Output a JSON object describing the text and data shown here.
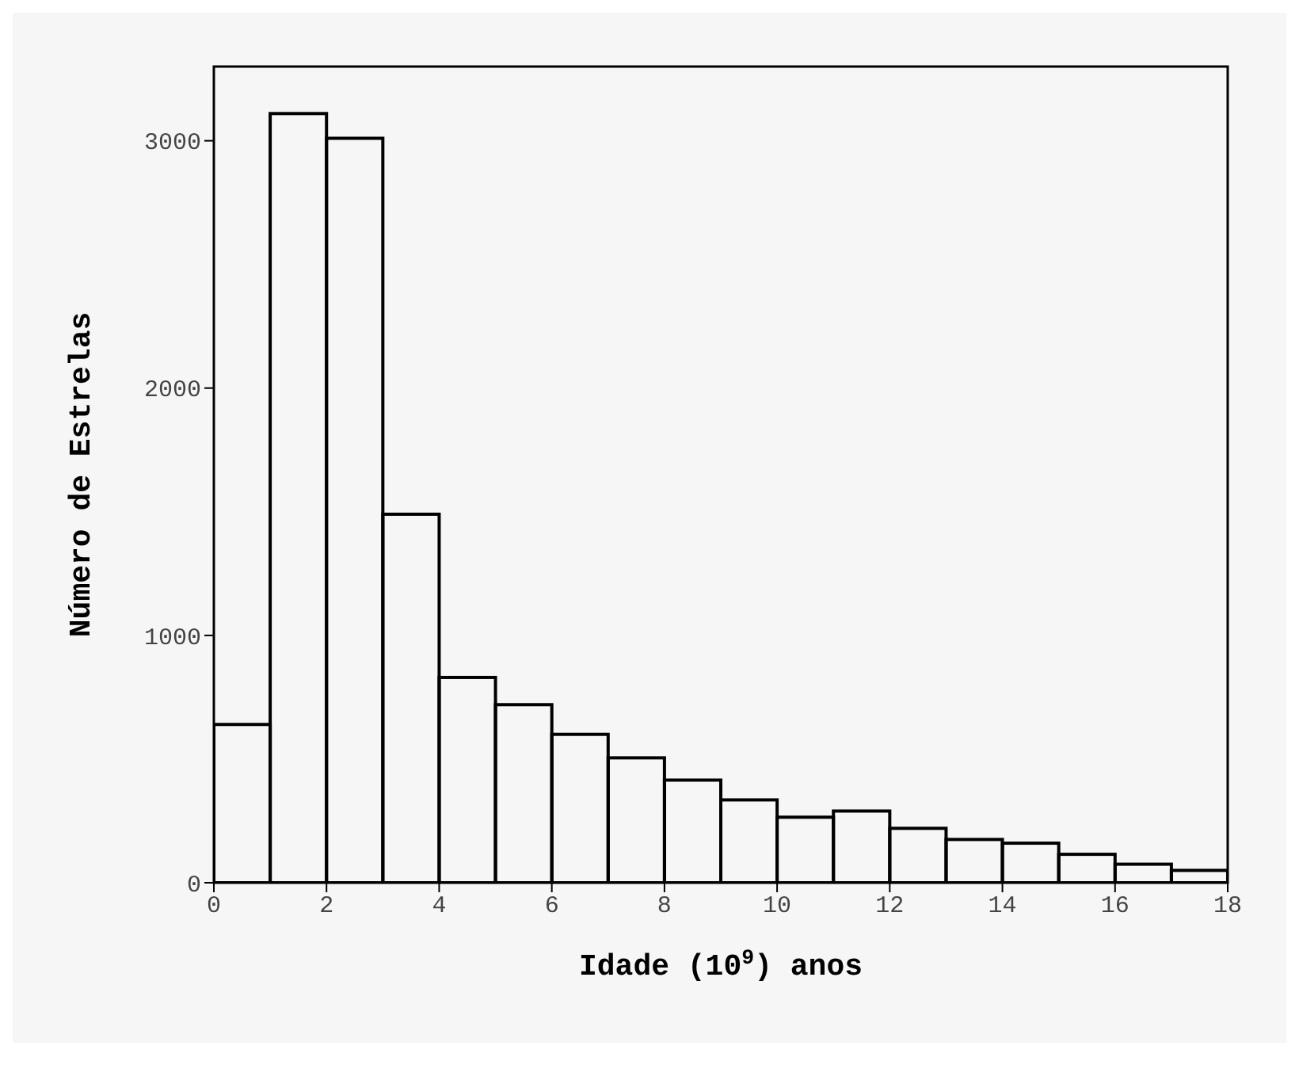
{
  "chart_data": {
    "type": "histogram",
    "xlabel": "Idade (10$^{9}$) anos",
    "ylabel": "Número de Estrelas",
    "bins": [
      0,
      1,
      2,
      3,
      4,
      5,
      6,
      7,
      8,
      9,
      10,
      11,
      12,
      13,
      14,
      15,
      16,
      17,
      18
    ],
    "values": [
      640,
      3110,
      3010,
      1490,
      830,
      720,
      600,
      505,
      415,
      335,
      265,
      290,
      220,
      175,
      160,
      115,
      75,
      50
    ],
    "color": "#000000",
    "xlim": [
      0,
      18
    ],
    "xticks": [
      0,
      2,
      4,
      6,
      8,
      10,
      12,
      14,
      16,
      18
    ],
    "ylim": [
      0,
      3300
    ],
    "yticks": [
      0,
      1000,
      2000,
      3000
    ]
  }
}
